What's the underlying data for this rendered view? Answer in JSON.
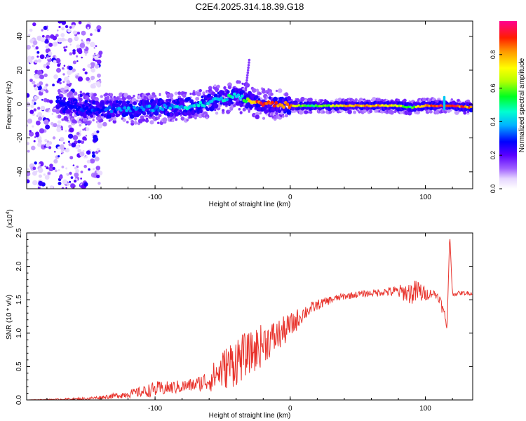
{
  "figure_title": "C2E4.2025.314.18.39.G18",
  "colors": {
    "snr_line": "#e8332c",
    "axis": "#000000",
    "background": "#ffffff"
  },
  "chart_data": [
    {
      "type": "heatmap",
      "id": "spectrogram",
      "xlabel": "Height of straight line (km)",
      "ylabel": "Frequency (Hz)",
      "xlim": [
        -195,
        135
      ],
      "ylim": [
        -50,
        49
      ],
      "xticks": [
        -100,
        0,
        100
      ],
      "xtick_labels": [
        "-100",
        "0",
        "100"
      ],
      "yticks": [
        40,
        20,
        0,
        -20,
        -40
      ],
      "ytick_labels": [
        "40",
        "20",
        "0",
        "-20",
        "-40"
      ],
      "colorbar": {
        "label": "Normalized spectral amplitude",
        "range": [
          0,
          1
        ],
        "ticks": [
          0.0,
          0.2,
          0.4,
          0.6,
          0.8
        ],
        "tick_labels": [
          "0.0",
          "0.2",
          "0.4",
          "0.6",
          "0.8"
        ]
      },
      "ridge": {
        "x": [
          -170,
          -150,
          -130,
          -110,
          -90,
          -70,
          -60,
          -50,
          -45,
          -40,
          -35,
          -30,
          -25,
          -20,
          -10,
          0,
          10,
          20,
          40,
          60,
          80,
          90,
          100,
          110,
          120,
          135
        ],
        "frequency": [
          0,
          -3,
          -3,
          -3,
          -2,
          -1,
          1,
          3,
          4,
          5,
          3,
          2,
          1,
          0,
          0,
          -1,
          -1,
          -1,
          -1,
          -1,
          -1,
          -2,
          -1,
          -1,
          -1,
          -2
        ],
        "amplitude": [
          0.2,
          0.25,
          0.3,
          0.35,
          0.35,
          0.4,
          0.4,
          0.45,
          0.45,
          0.4,
          0.5,
          0.7,
          0.85,
          0.9,
          0.85,
          0.8,
          0.55,
          0.55,
          0.75,
          0.8,
          0.7,
          0.55,
          0.85,
          0.9,
          0.9,
          0.8
        ]
      }
    },
    {
      "type": "line",
      "id": "snr",
      "xlabel": "Height of straight line (km)",
      "ylabel": "SNR (10 * v/v)",
      "y_multiplier_label": "(x10",
      "y_multiplier_exp": "4",
      "y_multiplier_close": ")",
      "xlim": [
        -195,
        135
      ],
      "ylim": [
        0,
        2.5
      ],
      "xticks": [
        -100,
        0,
        100
      ],
      "xtick_labels": [
        "-100",
        "0",
        "100"
      ],
      "yticks": [
        0.0,
        0.5,
        1.0,
        1.5,
        2.0,
        2.5
      ],
      "ytick_labels": [
        "0.0",
        "0.5",
        "1.0",
        "1.5",
        "2.0",
        "2.5"
      ],
      "series": [
        {
          "name": "SNR",
          "x": [
            -195,
            -150,
            -130,
            -110,
            -100,
            -90,
            -80,
            -70,
            -60,
            -50,
            -40,
            -30,
            -25,
            -20,
            -10,
            0,
            10,
            20,
            30,
            40,
            50,
            60,
            70,
            80,
            90,
            95,
            100,
            105,
            110,
            115,
            116,
            118,
            120,
            125,
            130,
            135
          ],
          "y": [
            0.0,
            0.02,
            0.06,
            0.12,
            0.16,
            0.18,
            0.2,
            0.23,
            0.3,
            0.45,
            0.6,
            0.7,
            0.75,
            0.85,
            0.95,
            1.1,
            1.3,
            1.42,
            1.5,
            1.55,
            1.58,
            1.6,
            1.62,
            1.62,
            1.6,
            1.62,
            1.58,
            1.6,
            1.55,
            1.2,
            1.05,
            2.5,
            1.58,
            1.6,
            1.6,
            1.6
          ],
          "noise": [
            0.0,
            0.02,
            0.04,
            0.08,
            0.12,
            0.1,
            0.1,
            0.1,
            0.18,
            0.3,
            0.4,
            0.3,
            0.35,
            0.3,
            0.25,
            0.2,
            0.12,
            0.08,
            0.06,
            0.05,
            0.05,
            0.05,
            0.06,
            0.1,
            0.18,
            0.2,
            0.1,
            0.06,
            0.08,
            0.1,
            0.0,
            0.0,
            0.03,
            0.03,
            0.03,
            0.03
          ]
        }
      ]
    }
  ]
}
